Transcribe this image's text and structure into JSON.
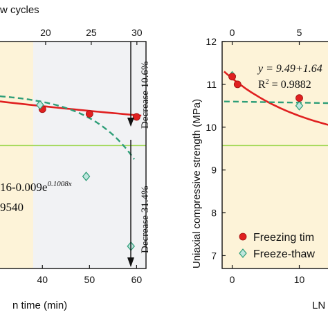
{
  "chart_data": [
    {
      "type": "scatter",
      "top_axis_title": "w cycles",
      "top_ticks": [
        "20",
        "25",
        "30"
      ],
      "bottom_ticks": [
        "40",
        "50",
        "60"
      ],
      "xlabel": "n time (min)",
      "xlim_bottom": [
        31,
        62
      ],
      "xlim_top": [
        15,
        31
      ],
      "ylim": [
        6.7,
        12.0
      ],
      "equation_line1": "16-0.009e",
      "equation_exp": "0.1008x",
      "equation_line2": "9540",
      "annotation_top": "Decrease 10.6%",
      "annotation_bottom": "Decrease 31.4%",
      "reference_line": 9.57,
      "series": [
        {
          "points": [
            {
              "x": 40,
              "y": 10.42
            },
            {
              "x": 50,
              "y": 10.31
            },
            {
              "x": 60,
              "y": 10.24
            }
          ],
          "color": "#e02020"
        },
        {
          "points": [
            {
              "x": 39.5,
              "y": 10.52
            },
            {
              "x": 49.3,
              "y": 8.85
            },
            {
              "x": 58.8,
              "y": 7.22
            }
          ],
          "color": "#2e9e78"
        }
      ],
      "colors": {
        "freezing": "#e02020",
        "freeze_thaw": "#2e9e78",
        "reference": "#9ad64a",
        "shade_a": "#fdf3d8",
        "shade_b": "#f1f2f4"
      }
    },
    {
      "type": "scatter",
      "top_ticks": [
        "0",
        "5"
      ],
      "yticks": [
        "7",
        "8",
        "9",
        "10",
        "11",
        "12"
      ],
      "bottom_ticks": [
        "0",
        "10"
      ],
      "ylabel": "Uniaxial compressive strength (MPa)",
      "xlabel": "LN",
      "xlim_bottom": [
        -1.5,
        15
      ],
      "xlim_top": [
        -0.75,
        7.5
      ],
      "ylim": [
        6.7,
        12.0
      ],
      "equation_line1": "y = 9.49+1.64",
      "equation_line2": "R",
      "equation_sup": "2",
      "equation_tail": " = 0.9882",
      "reference_line": 9.57,
      "legend": [
        {
          "label": "Freezing tim",
          "marker": "circle"
        },
        {
          "label": "Freeze-thaw",
          "marker": "diamond"
        }
      ],
      "series": [
        {
          "points": [
            {
              "x": 0,
              "y": 11.18
            },
            {
              "x": 0.8,
              "y": 11.0
            },
            {
              "x": 10,
              "y": 10.68
            }
          ],
          "color": "#e02020"
        },
        {
          "points": [
            {
              "x": 0,
              "y": 11.2
            },
            {
              "x": 10,
              "y": 10.5
            }
          ],
          "color": "#2e9e78"
        }
      ],
      "colors": {
        "freezing": "#e02020",
        "freeze_thaw": "#2e9e78",
        "reference": "#9ad64a",
        "shade_a": "#fdf3d8"
      }
    }
  ]
}
